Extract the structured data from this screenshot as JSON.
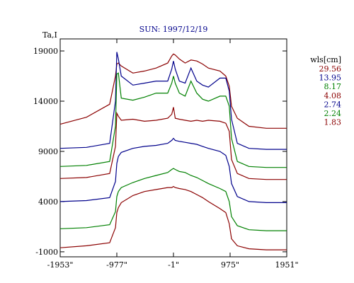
{
  "chart_data": {
    "type": "line",
    "title": "SUN: 1997/12/19",
    "ylabel": "Ta,I",
    "xlabel": "",
    "xlim": [
      -1953,
      1951
    ],
    "ylim": [
      -1500,
      20200
    ],
    "x_ticks": [
      {
        "value": -1953,
        "label": "-1953\""
      },
      {
        "value": -977,
        "label": "-977\""
      },
      {
        "value": -1,
        "label": "-1\""
      },
      {
        "value": 975,
        "label": "975\""
      },
      {
        "value": 1951,
        "label": "1951\""
      }
    ],
    "y_ticks": [
      {
        "value": 19000,
        "label": "19000"
      },
      {
        "value": 14000,
        "label": "14000"
      },
      {
        "value": 9000,
        "label": "9000"
      },
      {
        "value": 4000,
        "label": "4000"
      },
      {
        "value": -1000,
        "label": "-1000"
      }
    ],
    "legend": {
      "title": "wls[cm]",
      "placement": "right",
      "entries": [
        {
          "label": "29.56",
          "color": "#8b0000"
        },
        {
          "label": "13.95",
          "color": "#00008b"
        },
        {
          "label": "8.17",
          "color": "#008000"
        },
        {
          "label": "4.08",
          "color": "#8b0000"
        },
        {
          "label": "2.74",
          "color": "#00008b"
        },
        {
          "label": "2.24",
          "color": "#008000"
        },
        {
          "label": "1.83",
          "color": "#8b0000"
        }
      ]
    },
    "x": [
      -1953,
      -1500,
      -1100,
      -1000,
      -977,
      -950,
      -900,
      -700,
      -500,
      -300,
      -100,
      -30,
      -1,
      30,
      100,
      200,
      300,
      400,
      500,
      600,
      800,
      900,
      960,
      1000,
      1100,
      1300,
      1600,
      1951
    ],
    "series": [
      {
        "color": "#8b0000",
        "values": [
          11700,
          12400,
          13700,
          16500,
          17700,
          17800,
          17500,
          16800,
          17000,
          17300,
          17800,
          18500,
          18700,
          18600,
          18200,
          17800,
          18100,
          18000,
          17700,
          17300,
          17000,
          16500,
          15500,
          13500,
          12300,
          11500,
          11300,
          11300
        ]
      },
      {
        "color": "#00008b",
        "values": [
          9300,
          9400,
          9800,
          14000,
          18900,
          18200,
          16500,
          15600,
          15800,
          16000,
          16000,
          17200,
          18000,
          17200,
          16000,
          15800,
          17300,
          16000,
          15600,
          15400,
          16300,
          16300,
          15000,
          12200,
          9800,
          9300,
          9200,
          9200
        ]
      },
      {
        "color": "#008000",
        "values": [
          7500,
          7600,
          8000,
          11500,
          16700,
          16800,
          14300,
          14100,
          14400,
          14800,
          14800,
          15800,
          16500,
          15800,
          14800,
          14500,
          16000,
          14800,
          14200,
          14000,
          14500,
          14500,
          13500,
          10300,
          8000,
          7500,
          7400,
          7400
        ]
      },
      {
        "color": "#8b0000",
        "values": [
          6300,
          6400,
          6800,
          9500,
          12800,
          12500,
          12100,
          12200,
          12000,
          12100,
          12300,
          12700,
          13400,
          12300,
          12200,
          12100,
          12000,
          12100,
          12000,
          12100,
          12000,
          11800,
          11000,
          8200,
          6800,
          6300,
          6200,
          6200
        ]
      },
      {
        "color": "#00008b",
        "values": [
          4000,
          4100,
          4400,
          6000,
          7800,
          8500,
          8900,
          9300,
          9500,
          9600,
          9800,
          10100,
          10300,
          10100,
          10000,
          9900,
          9800,
          9700,
          9500,
          9300,
          9000,
          8600,
          7500,
          5800,
          4500,
          4000,
          3900,
          3900
        ]
      },
      {
        "color": "#008000",
        "values": [
          1300,
          1400,
          1700,
          3000,
          4500,
          5000,
          5400,
          5900,
          6300,
          6600,
          6900,
          7200,
          7300,
          7200,
          7000,
          6900,
          6600,
          6400,
          6100,
          5800,
          5300,
          5000,
          4000,
          2500,
          1600,
          1200,
          1100,
          1100
        ]
      },
      {
        "color": "#8b0000",
        "values": [
          -600,
          -400,
          -100,
          1400,
          2900,
          3400,
          3900,
          4600,
          5000,
          5200,
          5400,
          5400,
          5500,
          5400,
          5300,
          5200,
          5000,
          4700,
          4400,
          4000,
          3300,
          2900,
          1800,
          300,
          -400,
          -700,
          -800,
          -800
        ]
      }
    ]
  }
}
